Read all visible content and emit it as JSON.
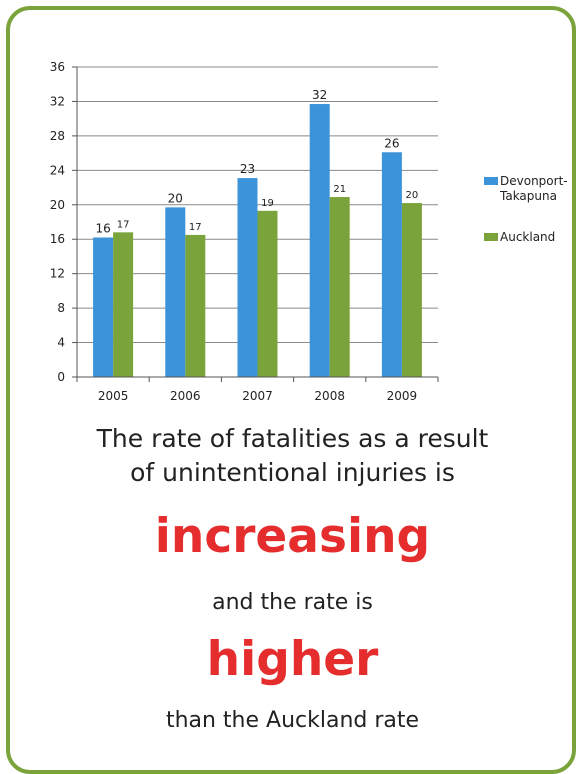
{
  "chart_data": {
    "type": "bar",
    "categories": [
      "2005",
      "2006",
      "2007",
      "2008",
      "2009"
    ],
    "series": [
      {
        "name": "Devonport-Takapuna",
        "color": "#3b94d9",
        "values": [
          16.2,
          19.7,
          23.1,
          31.7,
          26.1
        ],
        "labels": [
          "16",
          "20",
          "23",
          "32",
          "26"
        ]
      },
      {
        "name": "Auckland",
        "color": "#7aa43b",
        "values": [
          16.8,
          16.5,
          19.3,
          20.9,
          20.2
        ],
        "labels": [
          "17",
          "17",
          "19",
          "21",
          "20"
        ]
      }
    ],
    "yticks": [
      "0",
      "4",
      "8",
      "12",
      "16",
      "20",
      "24",
      "28",
      "32",
      "36"
    ],
    "ylim": [
      0,
      36
    ],
    "grid": true,
    "legend_position": "right",
    "legend": [
      "Devonport-",
      "Takapuna",
      "Auckland"
    ]
  },
  "message": {
    "line1": "The rate of fatalities as a result",
    "line2": "of unintentional  injuries is",
    "emphasis1": "increasing",
    "line3": "and the rate is",
    "emphasis2": "higher",
    "line4": "than the Auckland rate"
  },
  "colors": {
    "frame": "#7aa43b",
    "emphasis": "#e52d2d"
  }
}
